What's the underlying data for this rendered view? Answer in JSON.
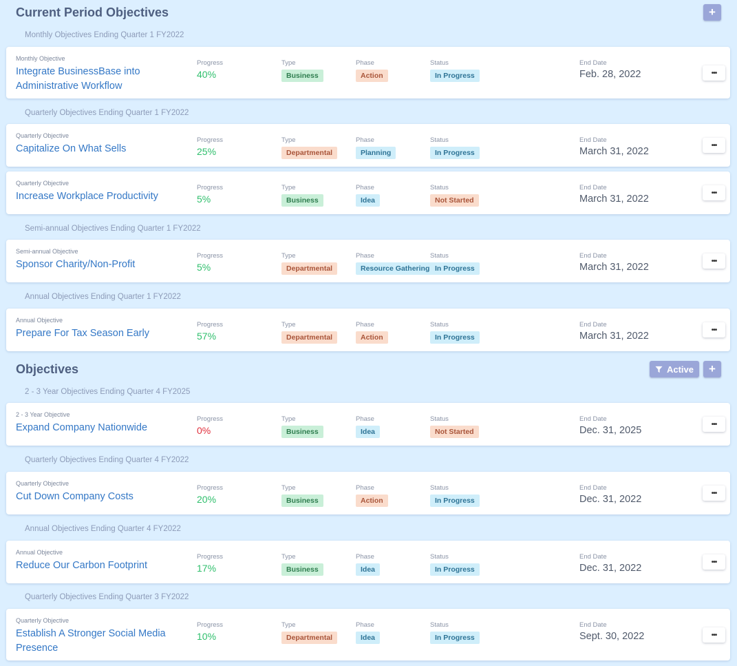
{
  "current_section": {
    "title": "Current Period Objectives",
    "add_label": "+",
    "groups": [
      {
        "label": "Monthly Objectives Ending Quarter 1 FY2022",
        "items": [
          {
            "kind": "Monthly Objective",
            "title": "Integrate BusinessBase into Administrative Workflow",
            "progress": "40%",
            "type": "Business",
            "phase": "Action",
            "status": "In Progress",
            "end_date": "Feb. 28, 2022"
          }
        ]
      },
      {
        "label": "Quarterly Objectives Ending Quarter 1 FY2022",
        "items": [
          {
            "kind": "Quarterly Objective",
            "title": "Capitalize On What Sells",
            "progress": "25%",
            "type": "Departmental",
            "phase": "Planning",
            "status": "In Progress",
            "end_date": "March 31, 2022"
          },
          {
            "kind": "Quarterly Objective",
            "title": "Increase Workplace Productivity",
            "progress": "5%",
            "type": "Business",
            "phase": "Idea",
            "status": "Not Started",
            "end_date": "March 31, 2022"
          }
        ]
      },
      {
        "label": "Semi-annual Objectives Ending Quarter 1 FY2022",
        "items": [
          {
            "kind": "Semi-annual Objective",
            "title": "Sponsor Charity/Non-Profit",
            "progress": "5%",
            "type": "Departmental",
            "phase": "Resource Gathering",
            "status": "In Progress",
            "end_date": "March 31, 2022"
          }
        ]
      },
      {
        "label": "Annual Objectives Ending Quarter 1 FY2022",
        "items": [
          {
            "kind": "Annual Objective",
            "title": "Prepare For Tax Season Early",
            "progress": "57%",
            "type": "Departmental",
            "phase": "Action",
            "status": "In Progress",
            "end_date": "March 31, 2022"
          }
        ]
      }
    ]
  },
  "objectives_section": {
    "title": "Objectives",
    "filter_label": "Active",
    "add_label": "+",
    "groups": [
      {
        "label": "2 - 3 Year Objectives Ending Quarter 4 FY2025",
        "items": [
          {
            "kind": "2 - 3 Year Objective",
            "title": "Expand Company Nationwide",
            "progress": "0%",
            "type": "Business",
            "phase": "Idea",
            "status": "Not Started",
            "end_date": "Dec. 31, 2025"
          }
        ]
      },
      {
        "label": "Quarterly Objectives Ending Quarter 4 FY2022",
        "items": [
          {
            "kind": "Quarterly Objective",
            "title": "Cut Down Company Costs",
            "progress": "20%",
            "type": "Business",
            "phase": "Action",
            "status": "In Progress",
            "end_date": "Dec. 31, 2022"
          }
        ]
      },
      {
        "label": "Annual Objectives Ending Quarter 4 FY2022",
        "items": [
          {
            "kind": "Annual Objective",
            "title": "Reduce Our Carbon Footprint",
            "progress": "17%",
            "type": "Business",
            "phase": "Idea",
            "status": "In Progress",
            "end_date": "Dec. 31, 2022"
          }
        ]
      },
      {
        "label": "Quarterly Objectives Ending Quarter 3 FY2022",
        "items": [
          {
            "kind": "Quarterly Objective",
            "title": "Establish A Stronger Social Media Presence",
            "progress": "10%",
            "type": "Departmental",
            "phase": "Idea",
            "status": "In Progress",
            "end_date": "Sept. 30, 2022"
          }
        ]
      }
    ]
  },
  "columns": {
    "progress": "Progress",
    "type": "Type",
    "phase": "Phase",
    "status": "Status",
    "end_date": "End Date"
  },
  "more_label": "•••",
  "colors": {
    "progress_positive": "#2fbf6c",
    "progress_zero": "#e0303d",
    "accent_button": "#9aa6d8",
    "link": "#3478c6"
  }
}
